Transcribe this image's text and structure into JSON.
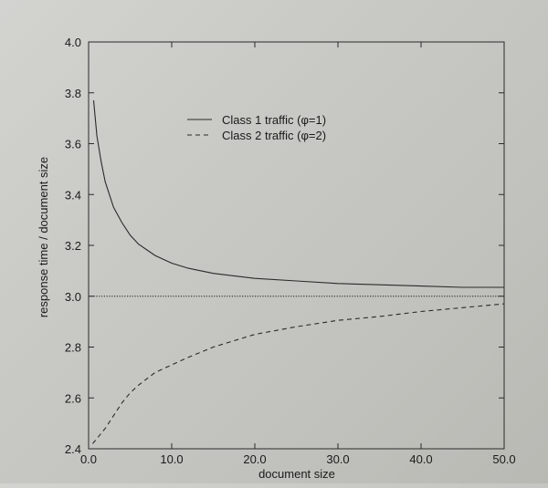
{
  "chart_data": {
    "type": "line",
    "title": "",
    "xlabel": "document size",
    "ylabel": "response time / document size",
    "xlim": [
      0,
      50
    ],
    "ylim": [
      2.4,
      4.0
    ],
    "x_ticks": [
      0,
      10,
      20,
      30,
      40,
      50
    ],
    "x_tick_labels": [
      "0.0",
      "10.0",
      "20.0",
      "30.0",
      "40.0",
      "50.0"
    ],
    "y_ticks": [
      2.4,
      2.6,
      2.8,
      3.0,
      3.2,
      3.4,
      3.6,
      3.8,
      4.0
    ],
    "y_tick_labels": [
      "2.4",
      "2.6",
      "2.8",
      "3.0",
      "3.2",
      "3.4",
      "3.6",
      "3.8",
      "4.0"
    ],
    "grid": false,
    "legend_position": "top-center",
    "reference_line": {
      "y": 3.0,
      "style": "dotted"
    },
    "series": [
      {
        "name": "Class 1 traffic (φ=1)",
        "style": "solid",
        "x": [
          0.6,
          1,
          1.5,
          2,
          3,
          4,
          5,
          6,
          8,
          10,
          12,
          15,
          20,
          25,
          30,
          35,
          40,
          45,
          50
        ],
        "y": [
          3.77,
          3.63,
          3.53,
          3.45,
          3.35,
          3.29,
          3.24,
          3.205,
          3.16,
          3.13,
          3.11,
          3.09,
          3.07,
          3.06,
          3.05,
          3.045,
          3.04,
          3.035,
          3.035
        ]
      },
      {
        "name": "Class 2 traffic (φ=2)",
        "style": "dashed",
        "x": [
          0.5,
          1,
          2,
          3,
          4,
          5,
          6,
          8,
          10,
          12,
          15,
          20,
          25,
          30,
          35,
          40,
          45,
          50
        ],
        "y": [
          2.42,
          2.44,
          2.48,
          2.53,
          2.58,
          2.62,
          2.65,
          2.7,
          2.73,
          2.76,
          2.8,
          2.85,
          2.88,
          2.905,
          2.92,
          2.94,
          2.955,
          2.97
        ]
      }
    ]
  }
}
